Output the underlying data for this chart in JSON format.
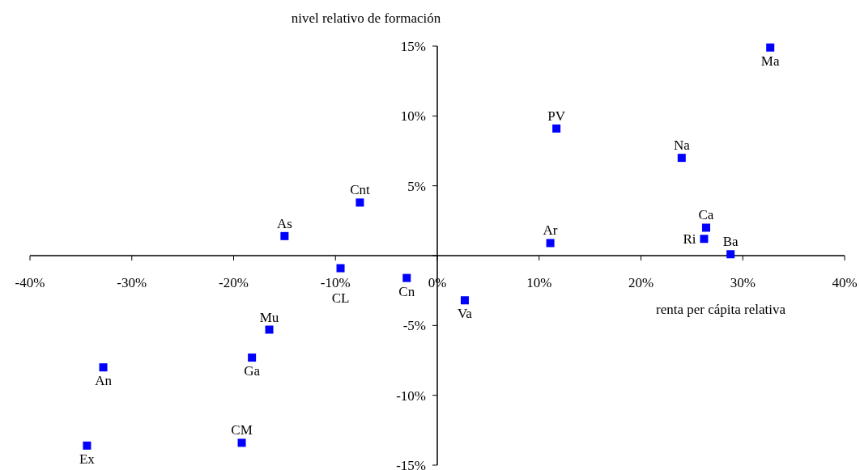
{
  "chart_data": {
    "type": "scatter",
    "xlabel": "renta per cápita relativa",
    "ylabel": "nivel relativo de formación",
    "x": [
      32.7,
      11.7,
      24.0,
      -7.6,
      -15.0,
      11.1,
      26.4,
      26.2,
      28.8,
      -9.5,
      -3.0,
      2.7,
      -16.5,
      -18.2,
      -32.8,
      -19.2,
      -34.4
    ],
    "series": [
      {
        "color": "#0000ff",
        "values": [
          14.9,
          9.1,
          7.0,
          3.8,
          1.4,
          0.9,
          2.0,
          1.2,
          0.1,
          -0.9,
          -1.6,
          -3.2,
          -5.3,
          -7.3,
          -8.0,
          -13.4,
          -13.6
        ],
        "value_labels": [
          "Ma",
          "PV",
          "Na",
          "Cnt",
          "As",
          "Ar",
          "Ca",
          "Ri",
          "Ba",
          "CL",
          "Cn",
          "Va",
          "Mu",
          "Ga",
          "An",
          "CM",
          "Ex"
        ]
      }
    ],
    "xlim": [
      -40,
      40
    ],
    "ylim": [
      -15,
      15
    ],
    "xticks": [
      {
        "value": -40,
        "label": "-40%"
      },
      {
        "value": -30,
        "label": "-30%"
      },
      {
        "value": -20,
        "label": "-20%"
      },
      {
        "value": -10,
        "label": "-10%"
      },
      {
        "value": 0,
        "label": "0%"
      },
      {
        "value": 10,
        "label": "10%"
      },
      {
        "value": 20,
        "label": "20%"
      },
      {
        "value": 30,
        "label": "30%"
      },
      {
        "value": 40,
        "label": "40%"
      }
    ],
    "yticks": [
      {
        "value": -15,
        "label": "-15%"
      },
      {
        "value": -10,
        "label": "-10%"
      },
      {
        "value": -5,
        "label": "-5%"
      },
      {
        "value": 0,
        "label": null
      },
      {
        "value": 5,
        "label": "5%"
      },
      {
        "value": 10,
        "label": "10%"
      },
      {
        "value": 15,
        "label": "15%"
      }
    ],
    "marker": "square",
    "grid": false
  }
}
